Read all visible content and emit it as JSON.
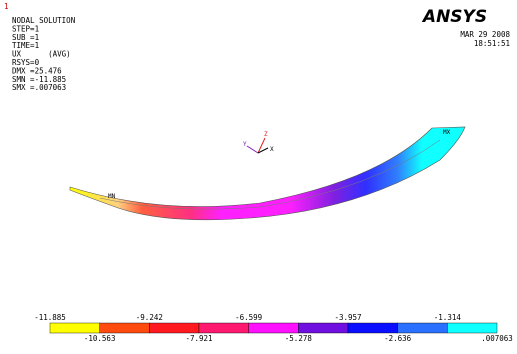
{
  "window_number": "1",
  "info": [
    "NODAL SOLUTION",
    "STEP=1",
    "SUB =1",
    "TIME=1",
    "UX      (AVG)",
    "RSYS=0",
    "DMX =25.476",
    "SMN =-11.885",
    "SMX =.007063"
  ],
  "logo": "ANSYS",
  "date": "MAR 29 2008",
  "time": "18:51:51",
  "model": {
    "min_label": "MN",
    "max_label": "MX"
  },
  "triad": {
    "x": "X",
    "y": "Y",
    "z": "Z"
  },
  "legend": {
    "colors": [
      "#ffff00",
      "#ff4a10",
      "#ff1a20",
      "#ff1a70",
      "#ff10ff",
      "#7010e0",
      "#0a10ff",
      "#2a70ff",
      "#10ffff"
    ],
    "labels": [
      "-11.885",
      "-10.563",
      "-9.242",
      "-7.921",
      "-6.599",
      "-5.278",
      "-3.957",
      "-2.636",
      "-1.314",
      ".007063"
    ]
  }
}
